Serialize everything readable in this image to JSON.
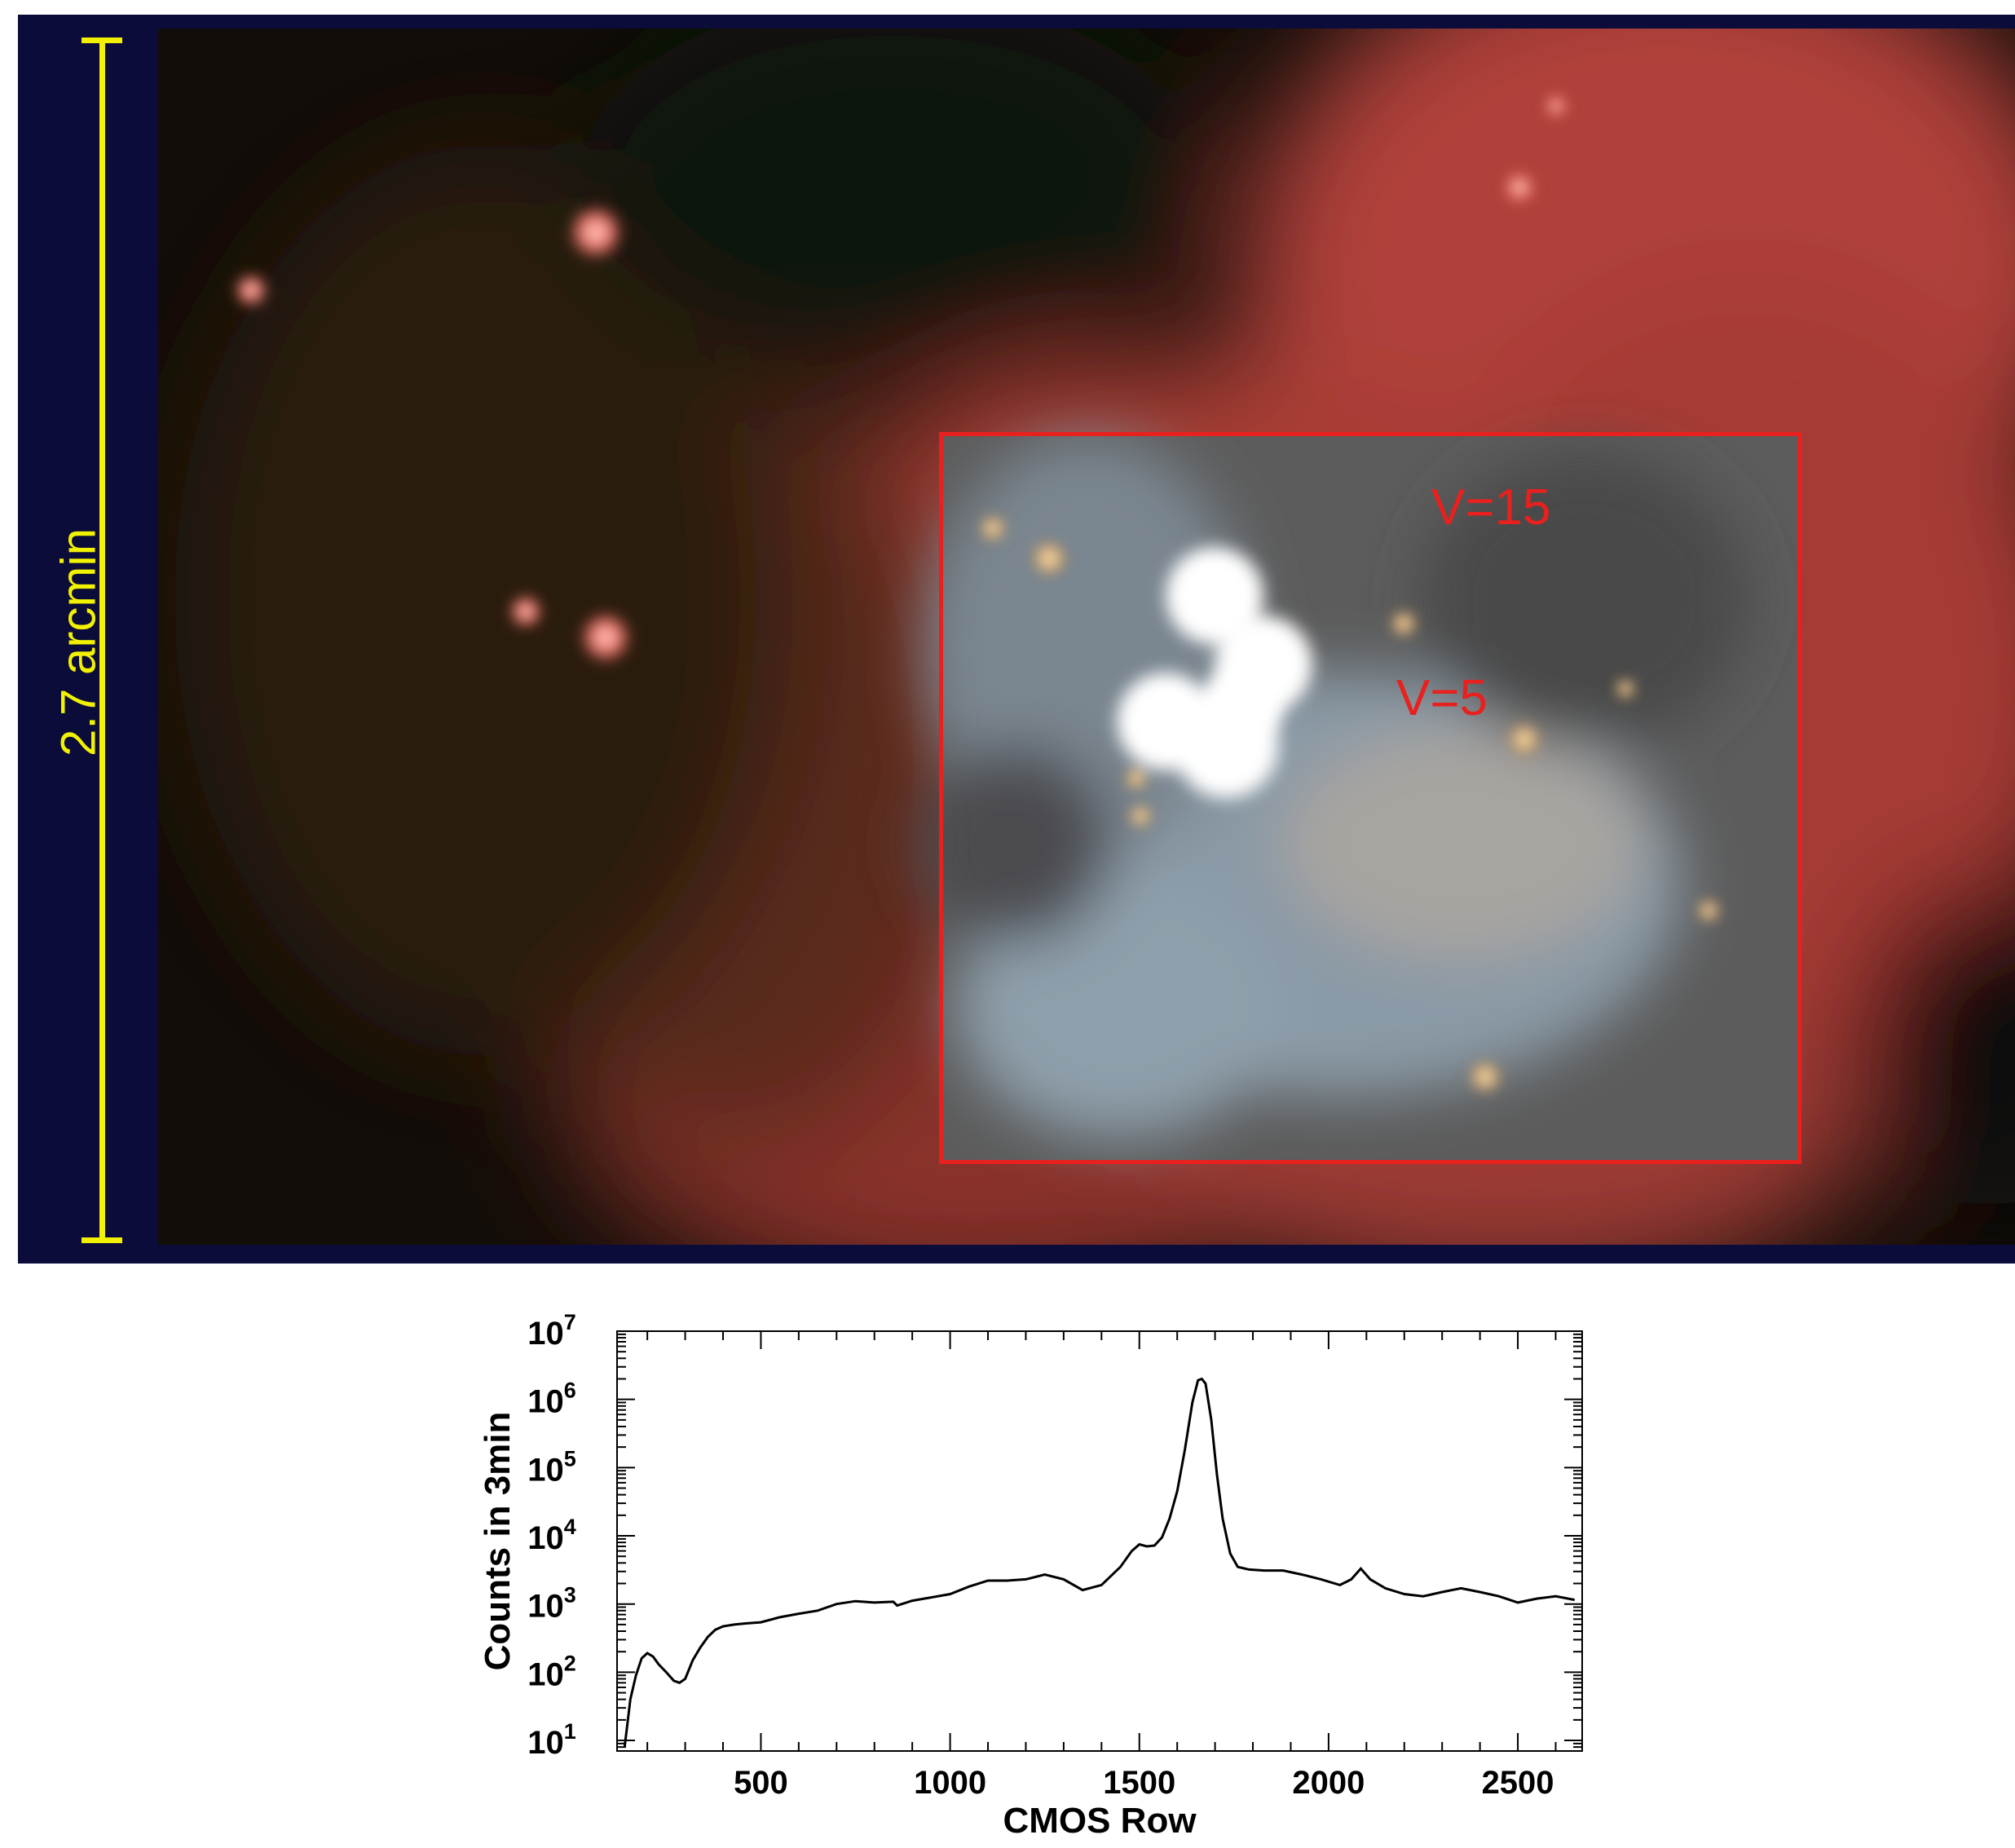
{
  "image": {
    "scale_label": "2.7 arcmin",
    "roi_labels": {
      "faint": "V=15",
      "bright": "V=5"
    },
    "colors": {
      "scale": "#f2f200",
      "roi": "#e8201e",
      "nebula": "#b8403a"
    }
  },
  "chart_data": {
    "type": "line",
    "xlabel": "CMOS Row",
    "ylabel": "Counts in 3min",
    "xlim": [
      120,
      2670
    ],
    "ylim": [
      7,
      10000000
    ],
    "yscale": "log",
    "xticks": [
      500,
      1000,
      1500,
      2000,
      2500
    ],
    "ytick_exponents": [
      1,
      2,
      3,
      4,
      5,
      6,
      7
    ],
    "grid": false,
    "series": [
      {
        "x": [
          140,
          155,
          170,
          185,
          200,
          215,
          230,
          250,
          270,
          285,
          300,
          320,
          340,
          360,
          380,
          400,
          430,
          460,
          500,
          550,
          600,
          650,
          700,
          750,
          800,
          850,
          860,
          900,
          950,
          1000,
          1050,
          1100,
          1150,
          1200,
          1250,
          1300,
          1350,
          1400,
          1450,
          1480,
          1500,
          1520,
          1540,
          1560,
          1580,
          1600,
          1620,
          1640,
          1655,
          1665,
          1675,
          1690,
          1705,
          1720,
          1740,
          1760,
          1790,
          1830,
          1880,
          1930,
          1980,
          2030,
          2060,
          2085,
          2110,
          2150,
          2200,
          2250,
          2300,
          2350,
          2400,
          2450,
          2500,
          2550,
          2600,
          2650
        ],
        "y": [
          8,
          40,
          90,
          160,
          190,
          170,
          130,
          100,
          75,
          70,
          80,
          150,
          230,
          330,
          420,
          470,
          500,
          520,
          540,
          640,
          720,
          800,
          1000,
          1100,
          1050,
          1080,
          950,
          1120,
          1250,
          1400,
          1800,
          2200,
          2200,
          2300,
          2700,
          2300,
          1600,
          1900,
          3500,
          6000,
          7500,
          7000,
          7200,
          9500,
          18000,
          45000,
          180000,
          900000,
          1900000,
          2000000,
          1700000,
          500000,
          80000,
          18000,
          5500,
          3500,
          3200,
          3100,
          3100,
          2700,
          2300,
          1900,
          2300,
          3300,
          2300,
          1700,
          1400,
          1300,
          1500,
          1700,
          1500,
          1300,
          1050,
          1200,
          1300,
          1150
        ]
      }
    ]
  }
}
